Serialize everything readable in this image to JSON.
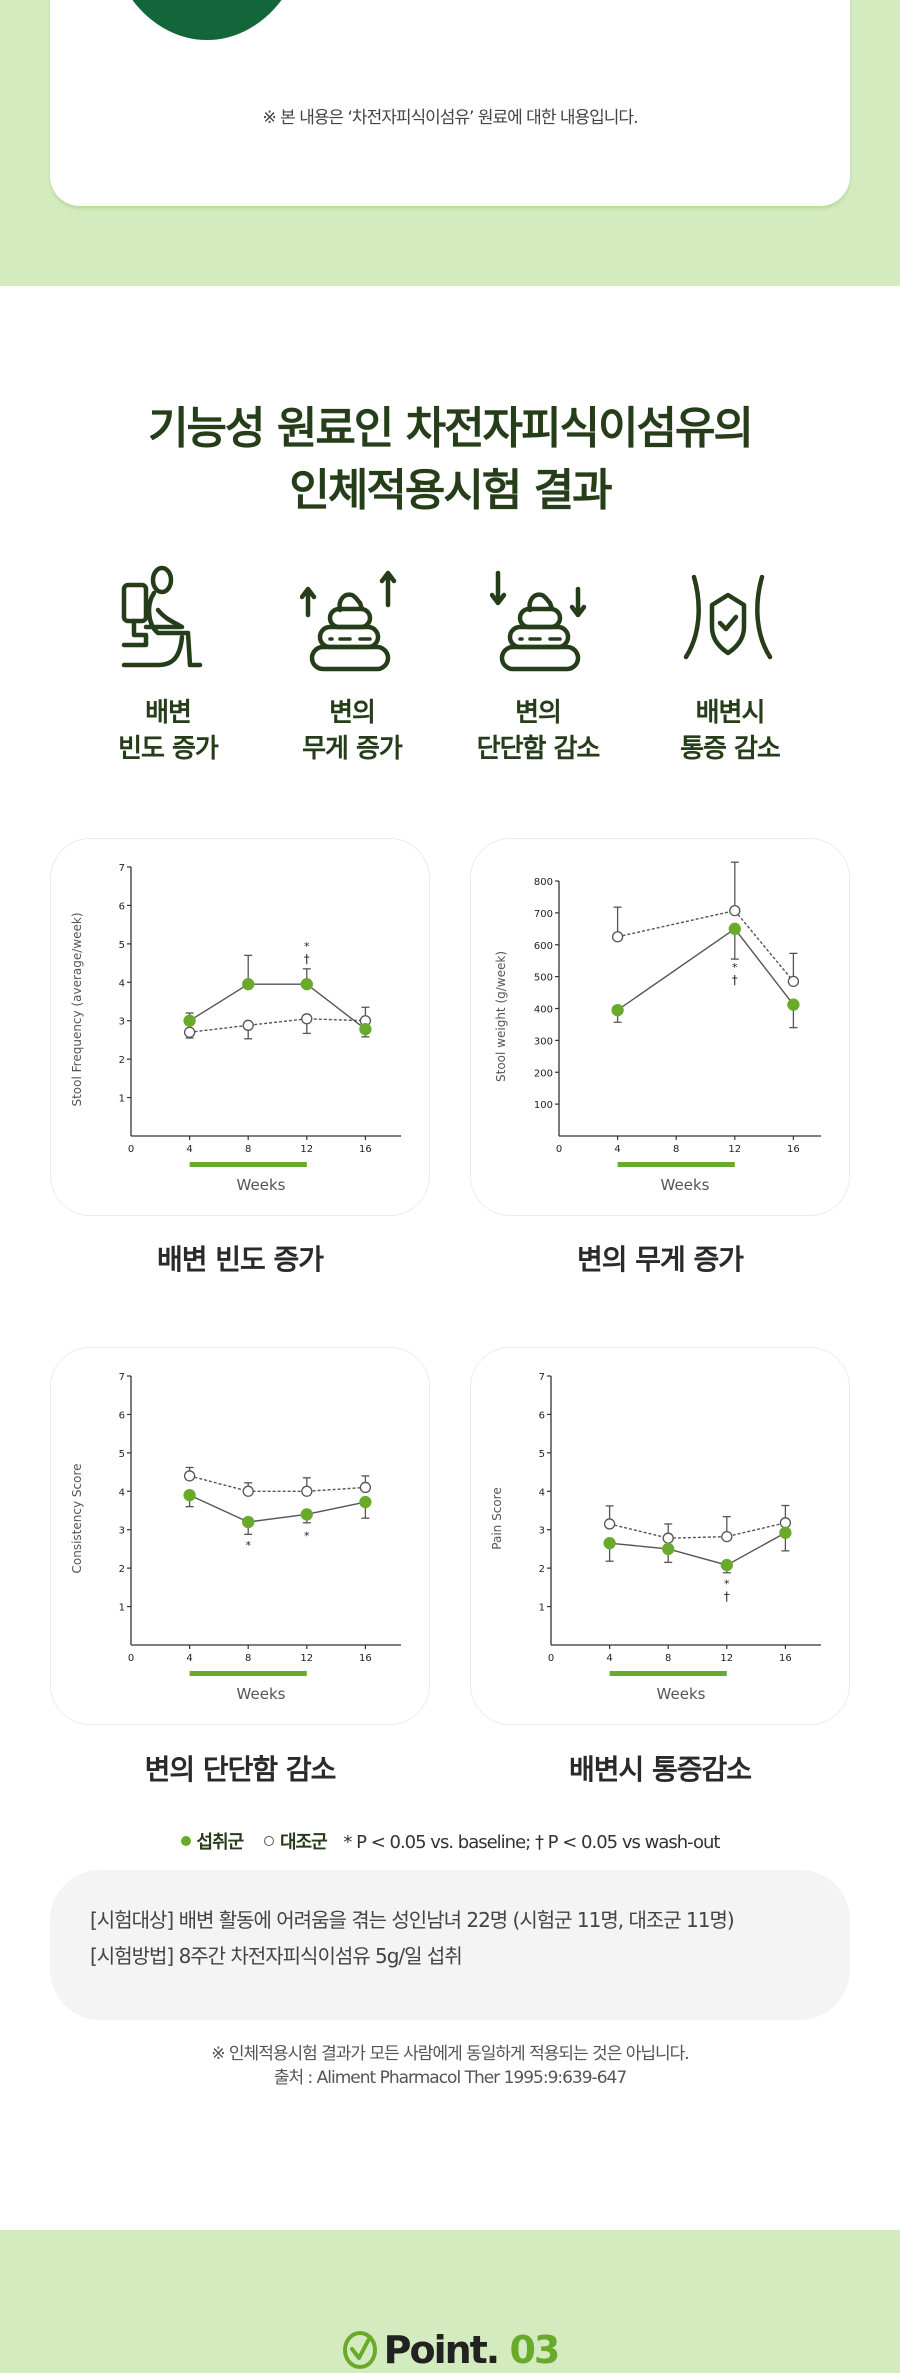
{
  "top_section": {
    "note": "※ 본 내용은 ‘차전자피식이섬유’ 원료에 대한 내용입니다."
  },
  "section": {
    "title_line1": "기능성 원료인 차전자피식이섬유의",
    "title_line2": "인체적용시험 결과"
  },
  "benefits": [
    {
      "icon": "toilet-person-icon",
      "line1": "배변",
      "line2": "빈도 증가"
    },
    {
      "icon": "stool-arrows-up-icon",
      "line1": "변의",
      "line2": "무게 증가"
    },
    {
      "icon": "stool-arrows-down-icon",
      "line1": "변의",
      "line2": "단단함 감소"
    },
    {
      "icon": "abdomen-shield-icon",
      "line1": "배변시",
      "line2": "통증 감소"
    }
  ],
  "colors": {
    "accent_green": "#6aaa2a",
    "dark_green": "#263d1a",
    "band_green": "#d4ebc0",
    "circle_green": "#126639"
  },
  "chart_data": [
    {
      "type": "line",
      "caption": "배변 빈도 증가",
      "ylabel": "Stool Frequency (average/week)",
      "xlabel": "Weeks",
      "xlim": [
        0,
        18
      ],
      "ylim": [
        0,
        7
      ],
      "xticks": [
        0,
        4,
        8,
        12,
        16
      ],
      "yticks": [
        1,
        2,
        3,
        4,
        5,
        6,
        7
      ],
      "treatment_period": [
        4,
        12
      ],
      "x": [
        4,
        8,
        12,
        16
      ],
      "series": [
        {
          "name": "섭취군",
          "style": "filled-solid",
          "values": [
            3.0,
            3.95,
            3.95,
            2.78
          ],
          "err_up": [
            0.2,
            0.75,
            0.4,
            0.0
          ],
          "err_down": [
            0.0,
            0.0,
            0.0,
            0.2
          ]
        },
        {
          "name": "대조군",
          "style": "open-dotted",
          "values": [
            2.7,
            2.88,
            3.05,
            3.0
          ],
          "err_up": [
            0.0,
            0.0,
            0.0,
            0.35
          ],
          "err_down": [
            0.15,
            0.35,
            0.38,
            0.0
          ]
        }
      ],
      "annotations": [
        {
          "x": 12,
          "text": "*",
          "y": 4.95
        },
        {
          "x": 12,
          "text": "†",
          "y": 4.7
        }
      ]
    },
    {
      "type": "line",
      "caption": "변의 무게 증가",
      "ylabel": "Stool weight (g/week)",
      "xlabel": "Weeks",
      "xlim": [
        0,
        18
      ],
      "ylim": [
        0,
        800
      ],
      "xticks": [
        0,
        4,
        8,
        12,
        16
      ],
      "yticks": [
        100,
        200,
        300,
        400,
        500,
        600,
        700,
        800
      ],
      "treatment_period": [
        4,
        12
      ],
      "x": [
        4,
        12,
        16
      ],
      "series": [
        {
          "name": "섭취군",
          "style": "filled-solid",
          "values": [
            395,
            650,
            412
          ],
          "err_up": [
            0,
            0,
            0
          ],
          "err_down": [
            38,
            95,
            72
          ]
        },
        {
          "name": "대조군",
          "style": "open-dotted",
          "values": [
            625,
            707,
            485
          ],
          "err_up": [
            93,
            152,
            88
          ],
          "err_down": [
            0,
            0,
            0
          ]
        }
      ],
      "annotations": [
        {
          "x": 12,
          "text": "*",
          "y": 530
        },
        {
          "x": 12,
          "text": "†",
          "y": 505
        }
      ]
    },
    {
      "type": "line",
      "caption": "변의 단단함 감소",
      "ylabel": "Consistency Score",
      "xlabel": "Weeks",
      "xlim": [
        0,
        18
      ],
      "ylim": [
        0,
        7
      ],
      "xticks": [
        0,
        4,
        8,
        12,
        16
      ],
      "yticks": [
        1,
        2,
        3,
        4,
        5,
        6,
        7
      ],
      "treatment_period": [
        4,
        12
      ],
      "x": [
        4,
        8,
        12,
        16
      ],
      "series": [
        {
          "name": "섭취군",
          "style": "filled-solid",
          "values": [
            3.9,
            3.2,
            3.4,
            3.72
          ],
          "err_up": [
            0,
            0,
            0,
            0
          ],
          "err_down": [
            0.3,
            0.32,
            0.22,
            0.42
          ]
        },
        {
          "name": "대조군",
          "style": "open-dotted",
          "values": [
            4.4,
            4.0,
            4.0,
            4.1
          ],
          "err_up": [
            0.22,
            0.22,
            0.35,
            0.3
          ],
          "err_down": [
            0,
            0,
            0,
            0
          ]
        }
      ],
      "annotations": [
        {
          "x": 8,
          "text": "*",
          "y": 2.6
        },
        {
          "x": 12,
          "text": "*",
          "y": 2.85
        }
      ]
    },
    {
      "type": "line",
      "caption": "배변시 통증감소",
      "ylabel": "Pain Score",
      "xlabel": "Weeks",
      "xlim": [
        0,
        18
      ],
      "ylim": [
        0,
        7
      ],
      "xticks": [
        0,
        4,
        8,
        12,
        16
      ],
      "yticks": [
        1,
        2,
        3,
        4,
        5,
        6,
        7
      ],
      "treatment_period": [
        4,
        12
      ],
      "x": [
        4,
        8,
        12,
        16
      ],
      "series": [
        {
          "name": "섭취군",
          "style": "filled-solid",
          "values": [
            2.65,
            2.5,
            2.08,
            2.92
          ],
          "err_up": [
            0,
            0,
            0,
            0
          ],
          "err_down": [
            0.47,
            0.35,
            0.2,
            0.47
          ]
        },
        {
          "name": "대조군",
          "style": "open-dotted",
          "values": [
            3.15,
            2.78,
            2.82,
            3.18
          ],
          "err_up": [
            0.47,
            0.37,
            0.52,
            0.45
          ],
          "err_down": [
            0,
            0,
            0,
            0
          ]
        }
      ],
      "annotations": [
        {
          "x": 12,
          "text": "*",
          "y": 1.6
        },
        {
          "x": 12,
          "text": "†",
          "y": 1.35
        }
      ]
    }
  ],
  "legend": {
    "treatment_label": "섭취군",
    "control_label": "대조군",
    "significance_note": "* P < 0.05 vs. baseline;  † P < 0.05 vs wash-out"
  },
  "study_info": {
    "subjects": "[시험대상] 배변 활동에 어려움을 겪는 성인남녀 22명 (시험군 11명, 대조군 11명)",
    "method": "[시험방법] 8주간 차전자피식이섬유 5g/일 섭취"
  },
  "footnotes": {
    "disclaimer": "※ 인체적용시험 결과가 모든 사람에게 동일하게 적용되는 것은 아닙니다.",
    "source": "출처 : Aliment Pharmacol Ther 1995:9:639-647"
  },
  "next_section": {
    "point_label": "Point.",
    "point_number": "03"
  }
}
